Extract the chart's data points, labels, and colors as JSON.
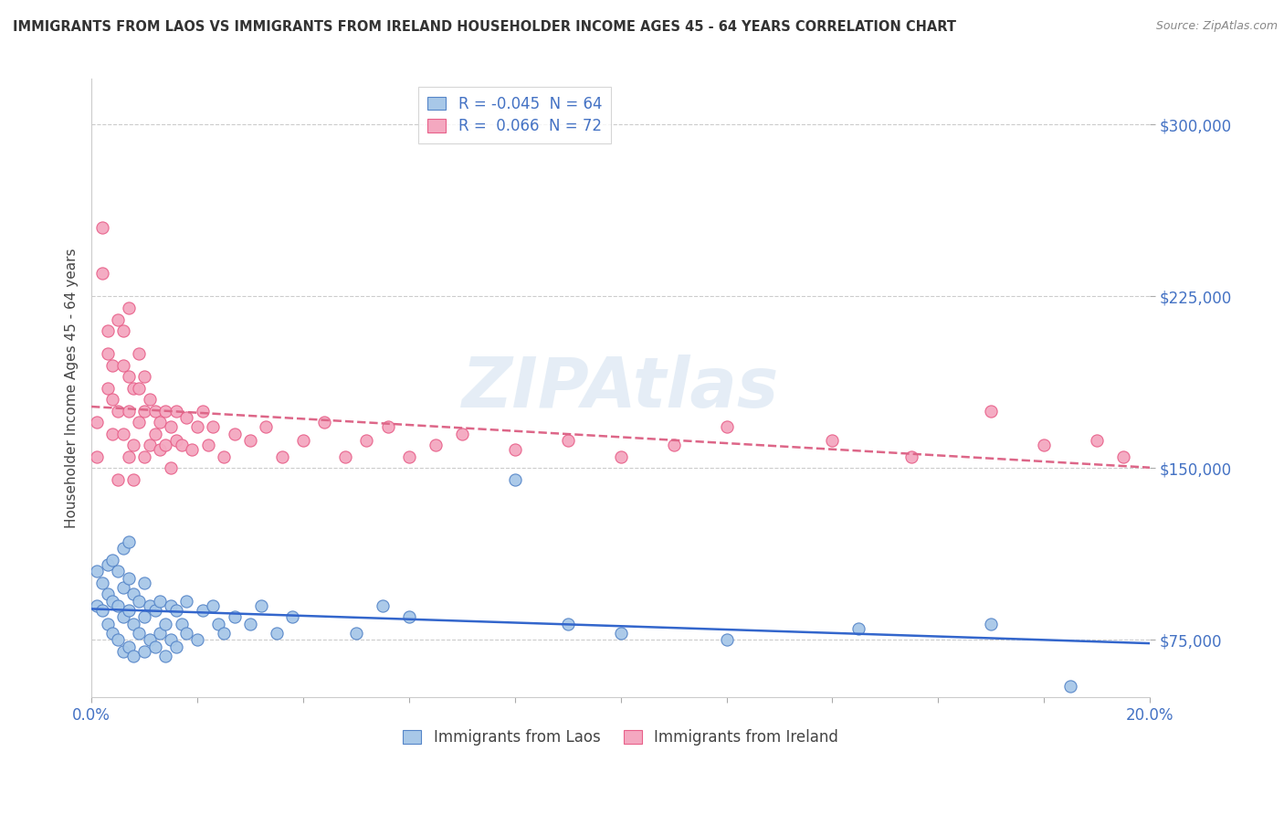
{
  "title": "IMMIGRANTS FROM LAOS VS IMMIGRANTS FROM IRELAND HOUSEHOLDER INCOME AGES 45 - 64 YEARS CORRELATION CHART",
  "source": "Source: ZipAtlas.com",
  "ylabel": "Householder Income Ages 45 - 64 years",
  "xlim": [
    0.0,
    0.2
  ],
  "ylim": [
    50000,
    320000
  ],
  "ytick_positions": [
    75000,
    150000,
    225000,
    300000
  ],
  "ytick_labels": [
    "$75,000",
    "$150,000",
    "$225,000",
    "$300,000"
  ],
  "xtick_positions": [
    0.0,
    0.02,
    0.04,
    0.06,
    0.08,
    0.1,
    0.12,
    0.14,
    0.16,
    0.18,
    0.2
  ],
  "xtick_labels": [
    "0.0%",
    "",
    "",
    "",
    "",
    "",
    "",
    "",
    "",
    "",
    "20.0%"
  ],
  "laos_color": "#a8c8e8",
  "ireland_color": "#f4a8c0",
  "laos_edge_color": "#5585c8",
  "ireland_edge_color": "#e8608a",
  "laos_line_color": "#3366cc",
  "ireland_line_color": "#dd6688",
  "legend_label_laos": "R = -0.045  N = 64",
  "legend_label_ireland": "R =  0.066  N = 72",
  "watermark_text": "ZIPAtlas",
  "laos_x": [
    0.001,
    0.001,
    0.002,
    0.002,
    0.003,
    0.003,
    0.003,
    0.004,
    0.004,
    0.004,
    0.005,
    0.005,
    0.005,
    0.006,
    0.006,
    0.006,
    0.006,
    0.007,
    0.007,
    0.007,
    0.007,
    0.008,
    0.008,
    0.008,
    0.009,
    0.009,
    0.01,
    0.01,
    0.01,
    0.011,
    0.011,
    0.012,
    0.012,
    0.013,
    0.013,
    0.014,
    0.014,
    0.015,
    0.015,
    0.016,
    0.016,
    0.017,
    0.018,
    0.018,
    0.02,
    0.021,
    0.023,
    0.024,
    0.025,
    0.027,
    0.03,
    0.032,
    0.035,
    0.038,
    0.05,
    0.055,
    0.06,
    0.08,
    0.09,
    0.1,
    0.12,
    0.145,
    0.17,
    0.185
  ],
  "laos_y": [
    105000,
    90000,
    88000,
    100000,
    82000,
    95000,
    108000,
    78000,
    92000,
    110000,
    75000,
    90000,
    105000,
    70000,
    85000,
    98000,
    115000,
    72000,
    88000,
    102000,
    118000,
    68000,
    82000,
    95000,
    78000,
    92000,
    70000,
    85000,
    100000,
    75000,
    90000,
    72000,
    88000,
    78000,
    92000,
    68000,
    82000,
    75000,
    90000,
    72000,
    88000,
    82000,
    78000,
    92000,
    75000,
    88000,
    90000,
    82000,
    78000,
    85000,
    82000,
    90000,
    78000,
    85000,
    78000,
    90000,
    85000,
    145000,
    82000,
    78000,
    75000,
    80000,
    82000,
    55000
  ],
  "ireland_x": [
    0.001,
    0.001,
    0.002,
    0.002,
    0.003,
    0.003,
    0.003,
    0.004,
    0.004,
    0.004,
    0.005,
    0.005,
    0.005,
    0.006,
    0.006,
    0.006,
    0.007,
    0.007,
    0.007,
    0.007,
    0.008,
    0.008,
    0.008,
    0.009,
    0.009,
    0.009,
    0.01,
    0.01,
    0.01,
    0.011,
    0.011,
    0.012,
    0.012,
    0.013,
    0.013,
    0.014,
    0.014,
    0.015,
    0.015,
    0.016,
    0.016,
    0.017,
    0.018,
    0.019,
    0.02,
    0.021,
    0.022,
    0.023,
    0.025,
    0.027,
    0.03,
    0.033,
    0.036,
    0.04,
    0.044,
    0.048,
    0.052,
    0.056,
    0.06,
    0.065,
    0.07,
    0.08,
    0.09,
    0.1,
    0.11,
    0.12,
    0.14,
    0.155,
    0.17,
    0.18,
    0.19,
    0.195
  ],
  "ireland_y": [
    155000,
    170000,
    255000,
    235000,
    210000,
    185000,
    200000,
    165000,
    180000,
    195000,
    175000,
    215000,
    145000,
    165000,
    195000,
    210000,
    155000,
    175000,
    190000,
    220000,
    160000,
    185000,
    145000,
    170000,
    185000,
    200000,
    155000,
    175000,
    190000,
    160000,
    180000,
    165000,
    175000,
    158000,
    170000,
    160000,
    175000,
    150000,
    168000,
    162000,
    175000,
    160000,
    172000,
    158000,
    168000,
    175000,
    160000,
    168000,
    155000,
    165000,
    162000,
    168000,
    155000,
    162000,
    170000,
    155000,
    162000,
    168000,
    155000,
    160000,
    165000,
    158000,
    162000,
    155000,
    160000,
    168000,
    162000,
    155000,
    175000,
    160000,
    162000,
    155000
  ]
}
